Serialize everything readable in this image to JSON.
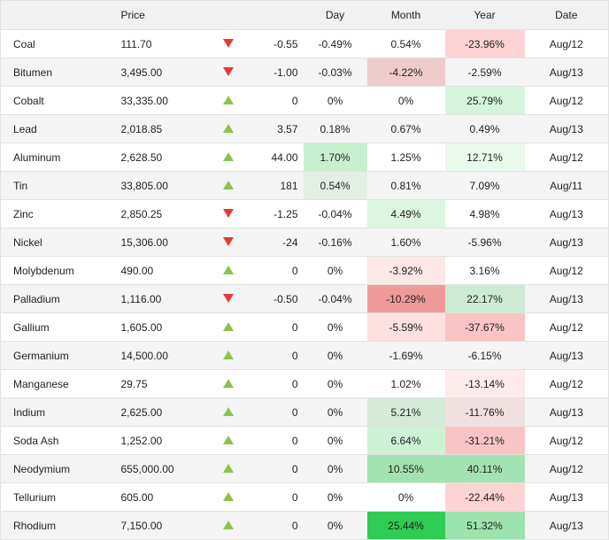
{
  "headers": {
    "name": "",
    "price": "Price",
    "arrow": "",
    "change": "",
    "day": "Day",
    "month": "Month",
    "year": "Year",
    "date": "Date"
  },
  "rows": [
    {
      "name": "Coal",
      "price": "111.70",
      "dir": "down",
      "change": "-0.55",
      "day": "-0.49%",
      "month": "0.54%",
      "year": "-23.96%",
      "date": "Aug/12",
      "day_bg": "",
      "month_bg": "",
      "year_bg": "#fdd3d3"
    },
    {
      "name": "Bitumen",
      "price": "3,495.00",
      "dir": "down",
      "change": "-1.00",
      "day": "-0.03%",
      "month": "-4.22%",
      "year": "-2.59%",
      "date": "Aug/13",
      "day_bg": "",
      "month_bg": "#eecccc",
      "year_bg": ""
    },
    {
      "name": "Cobalt",
      "price": "33,335.00",
      "dir": "up",
      "change": "0",
      "day": "0%",
      "month": "0%",
      "year": "25.79%",
      "date": "Aug/12",
      "day_bg": "",
      "month_bg": "",
      "year_bg": "#d4f5dc"
    },
    {
      "name": "Lead",
      "price": "2,018.85",
      "dir": "up",
      "change": "3.57",
      "day": "0.18%",
      "month": "0.67%",
      "year": "0.49%",
      "date": "Aug/13",
      "day_bg": "",
      "month_bg": "",
      "year_bg": ""
    },
    {
      "name": "Aluminum",
      "price": "2,628.50",
      "dir": "up",
      "change": "44.00",
      "day": "1.70%",
      "month": "1.25%",
      "year": "12.71%",
      "date": "Aug/12",
      "day_bg": "#c7f0cf",
      "month_bg": "",
      "year_bg": "#e9f9ec"
    },
    {
      "name": "Tin",
      "price": "33,805.00",
      "dir": "up",
      "change": "181",
      "day": "0.54%",
      "month": "0.81%",
      "year": "7.09%",
      "date": "Aug/11",
      "day_bg": "#e3efe5",
      "month_bg": "",
      "year_bg": ""
    },
    {
      "name": "Zinc",
      "price": "2,850.25",
      "dir": "down",
      "change": "-1.25",
      "day": "-0.04%",
      "month": "4.49%",
      "year": "4.98%",
      "date": "Aug/13",
      "day_bg": "",
      "month_bg": "#dcf6e1",
      "year_bg": ""
    },
    {
      "name": "Nickel",
      "price": "15,306.00",
      "dir": "down",
      "change": "-24",
      "day": "-0.16%",
      "month": "1.60%",
      "year": "-5.96%",
      "date": "Aug/13",
      "day_bg": "",
      "month_bg": "",
      "year_bg": ""
    },
    {
      "name": "Molybdenum",
      "price": "490.00",
      "dir": "up",
      "change": "0",
      "day": "0%",
      "month": "-3.92%",
      "year": "3.16%",
      "date": "Aug/12",
      "day_bg": "",
      "month_bg": "#fde7e7",
      "year_bg": ""
    },
    {
      "name": "Palladium",
      "price": "1,116.00",
      "dir": "down",
      "change": "-0.50",
      "day": "-0.04%",
      "month": "-10.29%",
      "year": "22.17%",
      "date": "Aug/13",
      "day_bg": "",
      "month_bg": "#ef9a9a",
      "year_bg": "#cdebd4"
    },
    {
      "name": "Gallium",
      "price": "1,605.00",
      "dir": "up",
      "change": "0",
      "day": "0%",
      "month": "-5.59%",
      "year": "-37.67%",
      "date": "Aug/12",
      "day_bg": "",
      "month_bg": "#fde0e0",
      "year_bg": "#fbc4c4"
    },
    {
      "name": "Germanium",
      "price": "14,500.00",
      "dir": "up",
      "change": "0",
      "day": "0%",
      "month": "-1.69%",
      "year": "-6.15%",
      "date": "Aug/13",
      "day_bg": "",
      "month_bg": "",
      "year_bg": ""
    },
    {
      "name": "Manganese",
      "price": "29.75",
      "dir": "up",
      "change": "0",
      "day": "0%",
      "month": "1.02%",
      "year": "-13.14%",
      "date": "Aug/12",
      "day_bg": "",
      "month_bg": "",
      "year_bg": "#fdeaea"
    },
    {
      "name": "Indium",
      "price": "2,625.00",
      "dir": "up",
      "change": "0",
      "day": "0%",
      "month": "5.21%",
      "year": "-11.76%",
      "date": "Aug/13",
      "day_bg": "",
      "month_bg": "#d3ebd8",
      "year_bg": "#f1e0e0"
    },
    {
      "name": "Soda Ash",
      "price": "1,252.00",
      "dir": "up",
      "change": "0",
      "day": "0%",
      "month": "6.64%",
      "year": "-31.21%",
      "date": "Aug/12",
      "day_bg": "",
      "month_bg": "#cdf3d5",
      "year_bg": "#fbc4c4"
    },
    {
      "name": "Neodymium",
      "price": "655,000.00",
      "dir": "up",
      "change": "0",
      "day": "0%",
      "month": "10.55%",
      "year": "40.11%",
      "date": "Aug/12",
      "day_bg": "",
      "month_bg": "#a3e3b1",
      "year_bg": "#a3e3b1"
    },
    {
      "name": "Tellurium",
      "price": "605.00",
      "dir": "up",
      "change": "0",
      "day": "0%",
      "month": "0%",
      "year": "-22.44%",
      "date": "Aug/13",
      "day_bg": "",
      "month_bg": "",
      "year_bg": "#fdd3d3"
    },
    {
      "name": "Rhodium",
      "price": "7,150.00",
      "dir": "up",
      "change": "0",
      "day": "0%",
      "month": "25.44%",
      "year": "51.32%",
      "date": "Aug/13",
      "day_bg": "",
      "month_bg": "#2ecc52",
      "year_bg": "#9de3ad"
    }
  ]
}
